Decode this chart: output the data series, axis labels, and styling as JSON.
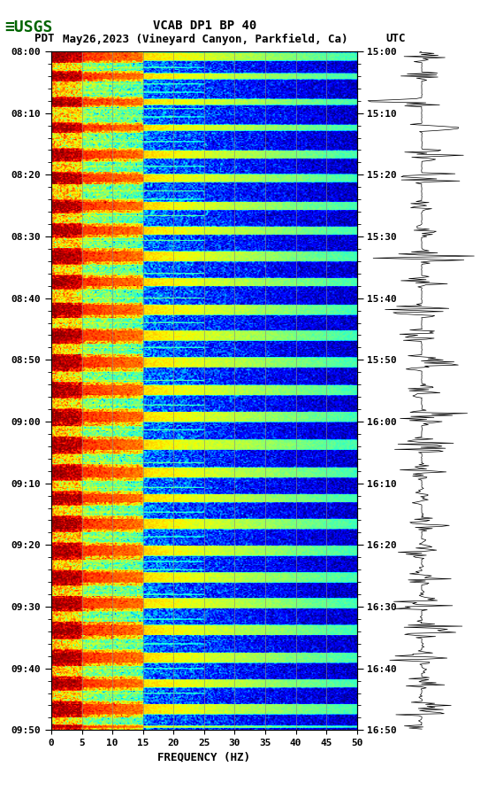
{
  "title_line1": "VCAB DP1 BP 40",
  "title_line2_left": "PDT",
  "title_line2_mid": "May26,2023 (Vineyard Canyon, Parkfield, Ca)",
  "title_line2_right": "UTC",
  "xlabel": "FREQUENCY (HZ)",
  "freq_min": 0,
  "freq_max": 50,
  "freq_ticks": [
    0,
    5,
    10,
    15,
    20,
    25,
    30,
    35,
    40,
    45,
    50
  ],
  "left_time_labels": [
    "08:00",
    "08:10",
    "08:20",
    "08:30",
    "08:40",
    "08:50",
    "09:00",
    "09:10",
    "09:20",
    "09:30",
    "09:40",
    "09:50"
  ],
  "right_time_labels": [
    "15:00",
    "15:10",
    "15:20",
    "15:30",
    "15:40",
    "15:50",
    "16:00",
    "16:10",
    "16:20",
    "16:30",
    "16:40",
    "16:50"
  ],
  "background_color": "#ffffff",
  "logo_color": "#006400",
  "spectrogram_colormap": "jet",
  "fig_width": 5.52,
  "fig_height": 8.92,
  "dpi": 100,
  "grid_color": "#888888",
  "grid_alpha": 0.6,
  "vertical_grid_freqs": [
    5,
    10,
    15,
    20,
    25,
    30,
    35,
    40,
    45
  ],
  "n_time": 660,
  "n_freq": 250,
  "event_rows": [
    [
      0,
      12
    ],
    [
      20,
      30
    ],
    [
      45,
      55
    ],
    [
      70,
      80
    ],
    [
      95,
      108
    ],
    [
      118,
      130
    ],
    [
      145,
      158
    ],
    [
      168,
      182
    ],
    [
      192,
      208
    ],
    [
      218,
      232
    ],
    [
      245,
      260
    ],
    [
      270,
      285
    ],
    [
      295,
      312
    ],
    [
      322,
      338
    ],
    [
      348,
      365
    ],
    [
      375,
      392
    ],
    [
      402,
      418
    ],
    [
      428,
      442
    ],
    [
      452,
      468
    ],
    [
      478,
      495
    ],
    [
      505,
      520
    ],
    [
      530,
      545
    ],
    [
      555,
      572
    ],
    [
      582,
      598
    ],
    [
      608,
      622
    ],
    [
      632,
      648
    ],
    [
      655,
      660
    ]
  ]
}
